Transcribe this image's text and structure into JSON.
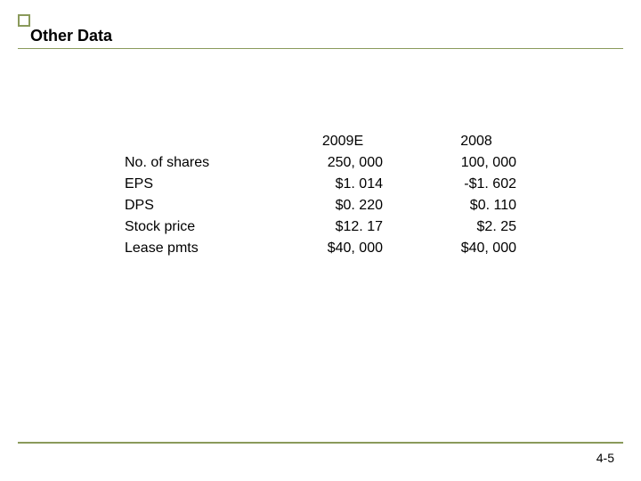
{
  "title": "Other Data",
  "page_number": "4-5",
  "colors": {
    "accent": "#8a9a5b",
    "text": "#000000",
    "background": "#ffffff"
  },
  "title_fontsize": 18,
  "body_fontsize": 16,
  "table": {
    "columns": [
      "2009E",
      "2008"
    ],
    "rows": [
      {
        "label": "No. of shares",
        "values": [
          "250, 000",
          "100, 000"
        ]
      },
      {
        "label": "EPS",
        "values": [
          "$1. 014",
          "-$1. 602"
        ]
      },
      {
        "label": "DPS",
        "values": [
          "$0. 220",
          "$0. 110"
        ]
      },
      {
        "label": "Stock price",
        "values": [
          "$12. 17",
          "$2. 25"
        ]
      },
      {
        "label": "Lease pmts",
        "values": [
          "$40, 000",
          "$40, 000"
        ]
      }
    ]
  }
}
